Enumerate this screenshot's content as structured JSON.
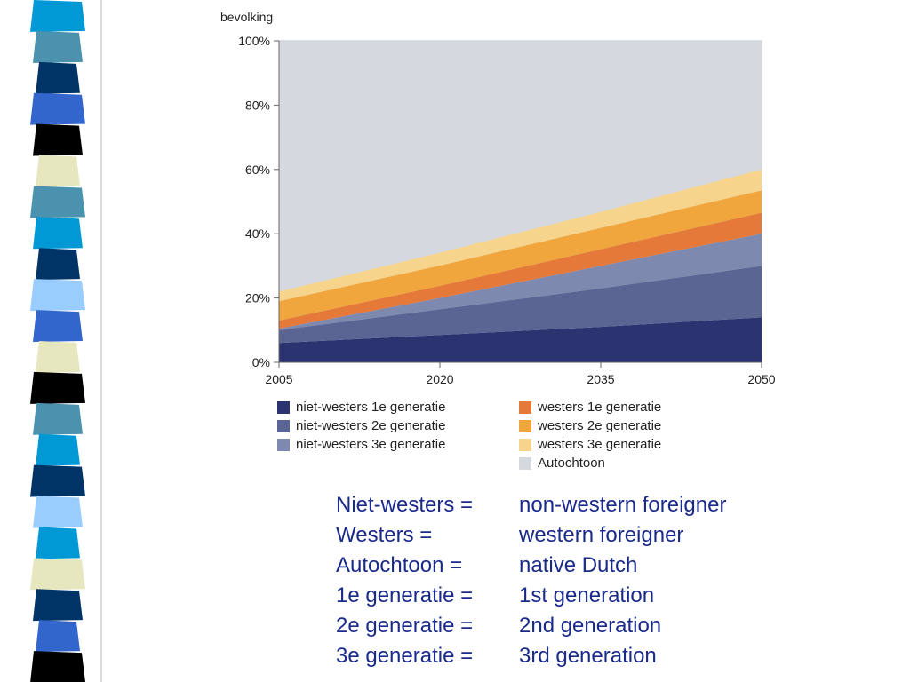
{
  "decoration": {
    "strip_colors": [
      "#0099d6",
      "#4a92ad",
      "#003366",
      "#3366cc",
      "#000000",
      "#e6e6bf",
      "#4a92ad",
      "#0099d6",
      "#003366",
      "#99ccff",
      "#3366cc",
      "#e6e6bf",
      "#000000",
      "#4a92ad",
      "#0099d6",
      "#003366",
      "#99ccff",
      "#0099d6",
      "#e6e6bf",
      "#003366",
      "#3366cc",
      "#000000"
    ]
  },
  "chart_data": {
    "type": "area",
    "stacked": true,
    "ylabel": "bevolking",
    "x": [
      "2005",
      "2020",
      "2035",
      "2050"
    ],
    "yticks": [
      "0%",
      "20%",
      "40%",
      "60%",
      "80%",
      "100%"
    ],
    "ylim": [
      0,
      100
    ],
    "grid": false,
    "legend_placement": "bottom",
    "series": [
      {
        "name": "niet-westers 1e generatie",
        "color": "#2b3470",
        "values": [
          6,
          8.5,
          11,
          14
        ]
      },
      {
        "name": "niet-westers 2e generatie",
        "color": "#5a6594",
        "values": [
          4,
          8,
          12,
          16
        ]
      },
      {
        "name": "niet-westers 3e generatie",
        "color": "#7e89b0",
        "values": [
          0.5,
          3.5,
          7,
          10
        ]
      },
      {
        "name": "westers 1e generatie",
        "color": "#e5793a",
        "values": [
          2.5,
          3.8,
          5.2,
          6.5
        ]
      },
      {
        "name": "westers 2e generatie",
        "color": "#f0a63c",
        "values": [
          6,
          6.3,
          6.6,
          7
        ]
      },
      {
        "name": "westers 3e generatie",
        "color": "#f6d48c",
        "values": [
          3,
          4,
          5,
          6.5
        ]
      },
      {
        "name": "Autochtoon",
        "color": "#d5d8de",
        "values": [
          78,
          65.9,
          53.2,
          40
        ]
      }
    ],
    "legend_columns": [
      [
        "niet-westers 1e generatie",
        "niet-westers 2e generatie",
        "niet-westers 3e generatie"
      ],
      [
        "westers 1e generatie",
        "westers 2e generatie",
        "westers 3e generatie",
        "Autochtoon"
      ]
    ]
  },
  "glossary": [
    {
      "term": "Niet-westers =",
      "definition": "non-western foreigner"
    },
    {
      "term": "Westers =",
      "definition": "western foreigner"
    },
    {
      "term": "Autochtoon =",
      "definition": "native Dutch"
    },
    {
      "term": "1e generatie =",
      "definition": "1st generation"
    },
    {
      "term": "2e generatie =",
      "definition": "2nd generation"
    },
    {
      "term": "3e generatie =",
      "definition": "3rd generation"
    }
  ]
}
